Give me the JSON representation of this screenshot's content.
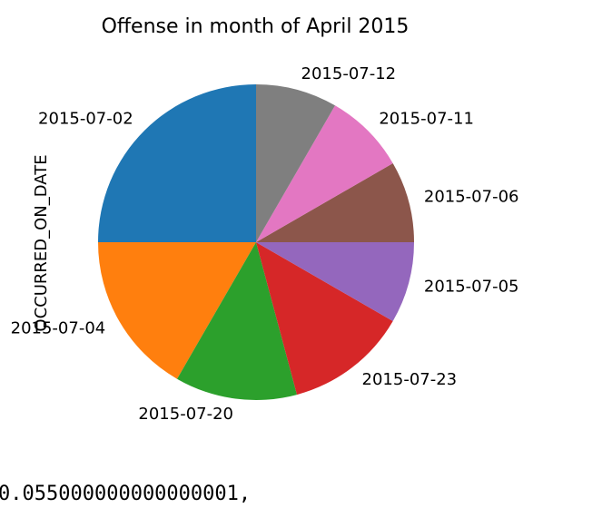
{
  "chart_data": {
    "type": "pie",
    "title": "Offense in month of April 2015",
    "ylabel": "OCCURRED_ON_DATE",
    "slices": [
      {
        "label": "2015-07-02",
        "value": 3,
        "color": "#1f77b4"
      },
      {
        "label": "2015-07-04",
        "value": 2,
        "color": "#ff7f0e"
      },
      {
        "label": "2015-07-20",
        "value": 1.5,
        "color": "#2ca02c"
      },
      {
        "label": "2015-07-23",
        "value": 1.5,
        "color": "#d62728"
      },
      {
        "label": "2015-07-05",
        "value": 1,
        "color": "#9467bd"
      },
      {
        "label": "2015-07-06",
        "value": 1,
        "color": "#8c564b"
      },
      {
        "label": "2015-07-11",
        "value": 1,
        "color": "#e377c2"
      },
      {
        "label": "2015-07-12",
        "value": 1,
        "color": "#7f7f7f"
      }
    ],
    "start_angle_deg": 90,
    "direction": "counterclockwise"
  },
  "output_text": "0.055000000000000001,"
}
